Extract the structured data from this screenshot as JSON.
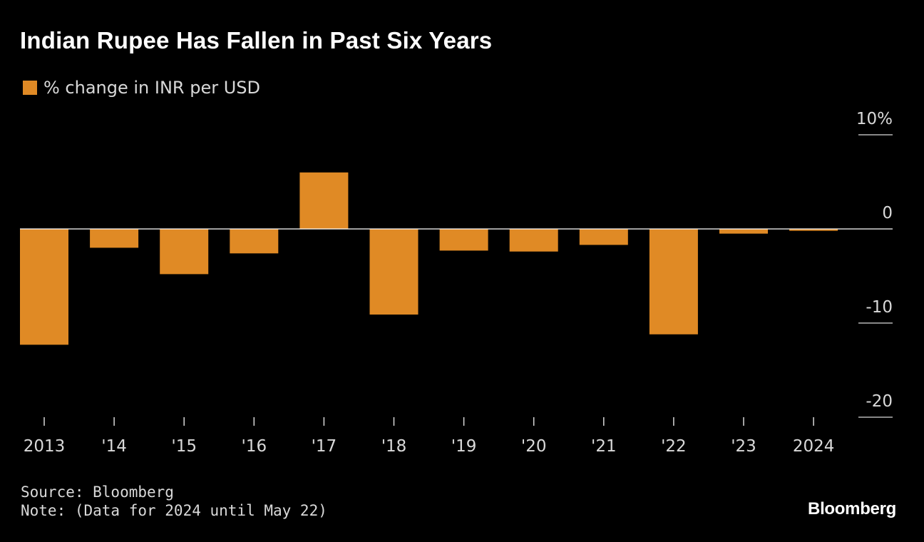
{
  "colors": {
    "bar": "#e08a25",
    "background": "#000000",
    "text": "#d9d9d9",
    "zero_line": "#ffffff"
  },
  "chart_data": {
    "type": "bar",
    "title": "Indian Rupee Has Fallen in Past Six Years",
    "legend": [
      "% change in INR per USD"
    ],
    "categories": [
      "2013",
      "'14",
      "'15",
      "'16",
      "'17",
      "'18",
      "'19",
      "'20",
      "'21",
      "'22",
      "'23",
      "2024"
    ],
    "series": [
      {
        "name": "% change in INR per USD",
        "values": [
          -12.3,
          -2.0,
          -4.8,
          -2.6,
          6.0,
          -9.1,
          -2.3,
          -2.4,
          -1.7,
          -11.2,
          -0.5,
          -0.2
        ]
      }
    ],
    "y_ticks": [
      {
        "value": 10,
        "label": "10%"
      },
      {
        "value": 0,
        "label": "0"
      },
      {
        "value": -10,
        "label": "-10"
      },
      {
        "value": -20,
        "label": "-20"
      }
    ],
    "ylim": [
      -20,
      10
    ],
    "xlabel": "",
    "ylabel": "",
    "legend_position": "top-left",
    "y_axis_side": "right"
  },
  "footer": {
    "source": "Source: Bloomberg",
    "note": "Note: (Data for 2024 until May 22)"
  },
  "brand": "Bloomberg"
}
